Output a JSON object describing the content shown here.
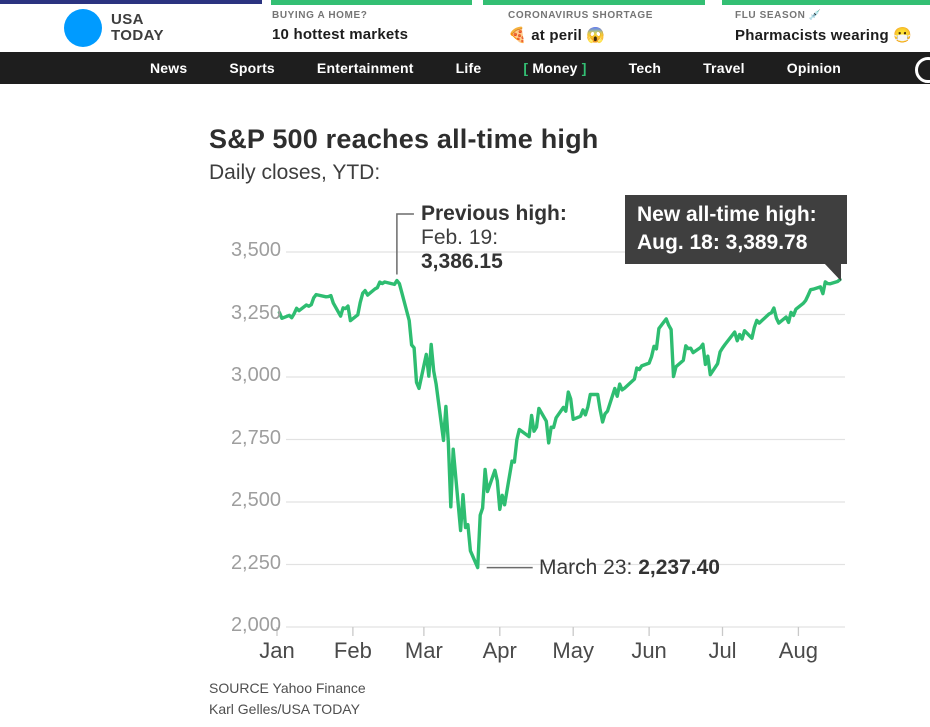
{
  "brand": {
    "logo_line1": "USA",
    "logo_line2": "TODAY",
    "colors": {
      "blue": "#009bff",
      "green": "#33bf73",
      "navy": "#2b3380",
      "nav_bg": "#1e1e1e",
      "tooltip_bg": "#3f3f3f"
    }
  },
  "header": {
    "teasers": [
      {
        "kicker": "BUYING A HOME?",
        "headline": "10 hottest markets"
      },
      {
        "kicker": "CORONAVIRUS SHORTAGE",
        "headline": "🍕 at peril 😱"
      },
      {
        "kicker": "FLU SEASON 💉",
        "headline": "Pharmacists wearing 😷"
      }
    ]
  },
  "nav": {
    "items": [
      "News",
      "Sports",
      "Entertainment",
      "Life",
      "Money",
      "Tech",
      "Travel",
      "Opinion"
    ],
    "money_bracket_left": "[",
    "money_bracket_right": "]"
  },
  "article": {
    "title": "S&P 500 reaches all-time high",
    "subtitle": "Daily closes, YTD:"
  },
  "annotations": {
    "previous_high": {
      "line1": "Previous high:",
      "line2": "Feb. 19:",
      "line3": "3,386.15"
    },
    "new_high": {
      "line1": "New all-time high:",
      "line2": "Aug. 18: 3,389.78"
    },
    "low": {
      "label": "March 23: ",
      "value": "2,237.40"
    }
  },
  "source": {
    "line1": "SOURCE Yahoo Finance",
    "line2": "Karl Gelles/USA TODAY"
  },
  "chart_data": {
    "type": "line",
    "title": "S&P 500 reaches all-time high",
    "subtitle": "Daily closes, YTD:",
    "series_name": "S&P 500 daily close",
    "x_unit": "days since Jan 1, 2020",
    "line_color": "#2ebd71",
    "grid": true,
    "ylim": [
      2000,
      3500
    ],
    "xlim_days": [
      0,
      230
    ],
    "y_ticks": [
      "3,500",
      "3,250",
      "3,000",
      "2,750",
      "2,500",
      "2,250",
      "2,000"
    ],
    "y_tick_values": [
      3500,
      3250,
      3000,
      2750,
      2500,
      2250,
      2000
    ],
    "x_tick_labels": [
      "Jan",
      "Feb",
      "Mar",
      "Apr",
      "May",
      "Jun",
      "Jul",
      "Aug"
    ],
    "x_tick_days": [
      0,
      31,
      60,
      91,
      121,
      152,
      182,
      213
    ],
    "annotation_points": {
      "previous_high": [
        49,
        3386.15
      ],
      "low": [
        82,
        2237.4
      ],
      "new_high": [
        230,
        3389.78
      ]
    },
    "points": [
      [
        1,
        3257.85
      ],
      [
        2,
        3234.85
      ],
      [
        5,
        3246.28
      ],
      [
        6,
        3237.18
      ],
      [
        7,
        3253.05
      ],
      [
        8,
        3274.7
      ],
      [
        9,
        3265.35
      ],
      [
        12,
        3288.13
      ],
      [
        13,
        3283.15
      ],
      [
        14,
        3289.29
      ],
      [
        15,
        3316.81
      ],
      [
        16,
        3329.62
      ],
      [
        20,
        3320.79
      ],
      [
        21,
        3321.75
      ],
      [
        22,
        3325.54
      ],
      [
        23,
        3295.47
      ],
      [
        26,
        3243.63
      ],
      [
        27,
        3276.24
      ],
      [
        28,
        3273.4
      ],
      [
        29,
        3283.66
      ],
      [
        30,
        3225.52
      ],
      [
        33,
        3248.92
      ],
      [
        34,
        3297.59
      ],
      [
        35,
        3334.69
      ],
      [
        36,
        3345.78
      ],
      [
        37,
        3327.71
      ],
      [
        40,
        3352.09
      ],
      [
        41,
        3357.75
      ],
      [
        42,
        3379.45
      ],
      [
        43,
        3373.94
      ],
      [
        44,
        3380.16
      ],
      [
        48,
        3370.29
      ],
      [
        49,
        3386.15
      ],
      [
        50,
        3373.23
      ],
      [
        51,
        3337.75
      ],
      [
        54,
        3225.89
      ],
      [
        55,
        3128.21
      ],
      [
        56,
        3116.39
      ],
      [
        57,
        2978.76
      ],
      [
        58,
        2954.22
      ],
      [
        61,
        3090.23
      ],
      [
        62,
        3003.37
      ],
      [
        63,
        3130.12
      ],
      [
        64,
        3023.94
      ],
      [
        65,
        2972.37
      ],
      [
        68,
        2746.56
      ],
      [
        69,
        2882.23
      ],
      [
        70,
        2741.38
      ],
      [
        71,
        2480.64
      ],
      [
        72,
        2711.02
      ],
      [
        75,
        2386.13
      ],
      [
        76,
        2529.19
      ],
      [
        77,
        2398.1
      ],
      [
        78,
        2409.39
      ],
      [
        79,
        2304.92
      ],
      [
        82,
        2237.4
      ],
      [
        83,
        2447.33
      ],
      [
        84,
        2475.56
      ],
      [
        85,
        2630.07
      ],
      [
        86,
        2541.47
      ],
      [
        89,
        2626.65
      ],
      [
        90,
        2584.59
      ],
      [
        91,
        2470.5
      ],
      [
        92,
        2526.9
      ],
      [
        93,
        2488.65
      ],
      [
        96,
        2663.68
      ],
      [
        97,
        2659.41
      ],
      [
        98,
        2749.98
      ],
      [
        99,
        2789.82
      ],
      [
        103,
        2761.63
      ],
      [
        104,
        2846.06
      ],
      [
        105,
        2783.36
      ],
      [
        106,
        2799.55
      ],
      [
        107,
        2874.56
      ],
      [
        110,
        2823.16
      ],
      [
        111,
        2736.56
      ],
      [
        112,
        2799.31
      ],
      [
        113,
        2797.8
      ],
      [
        114,
        2836.74
      ],
      [
        117,
        2878.48
      ],
      [
        118,
        2863.39
      ],
      [
        119,
        2939.51
      ],
      [
        120,
        2912.43
      ],
      [
        121,
        2830.71
      ],
      [
        124,
        2842.74
      ],
      [
        125,
        2868.44
      ],
      [
        126,
        2848.42
      ],
      [
        127,
        2881.19
      ],
      [
        128,
        2929.8
      ],
      [
        131,
        2930.32
      ],
      [
        132,
        2870.12
      ],
      [
        133,
        2820.0
      ],
      [
        134,
        2852.5
      ],
      [
        135,
        2863.7
      ],
      [
        138,
        2953.91
      ],
      [
        139,
        2922.94
      ],
      [
        140,
        2971.61
      ],
      [
        141,
        2948.51
      ],
      [
        142,
        2955.45
      ],
      [
        146,
        2991.77
      ],
      [
        147,
        3036.13
      ],
      [
        148,
        3029.73
      ],
      [
        149,
        3044.31
      ],
      [
        152,
        3055.73
      ],
      [
        153,
        3080.82
      ],
      [
        154,
        3122.87
      ],
      [
        155,
        3112.35
      ],
      [
        156,
        3193.93
      ],
      [
        159,
        3232.39
      ],
      [
        160,
        3207.18
      ],
      [
        161,
        3190.14
      ],
      [
        162,
        3002.1
      ],
      [
        163,
        3041.31
      ],
      [
        166,
        3066.59
      ],
      [
        167,
        3124.74
      ],
      [
        168,
        3113.49
      ],
      [
        169,
        3115.34
      ],
      [
        170,
        3097.74
      ],
      [
        173,
        3117.86
      ],
      [
        174,
        3131.29
      ],
      [
        175,
        3050.33
      ],
      [
        176,
        3083.76
      ],
      [
        177,
        3009.05
      ],
      [
        180,
        3053.24
      ],
      [
        181,
        3100.29
      ],
      [
        182,
        3115.86
      ],
      [
        183,
        3130.01
      ],
      [
        187,
        3179.72
      ],
      [
        188,
        3145.32
      ],
      [
        189,
        3169.94
      ],
      [
        190,
        3152.05
      ],
      [
        191,
        3185.04
      ],
      [
        194,
        3155.22
      ],
      [
        195,
        3197.52
      ],
      [
        196,
        3226.56
      ],
      [
        197,
        3215.57
      ],
      [
        198,
        3224.73
      ],
      [
        201,
        3251.84
      ],
      [
        202,
        3257.3
      ],
      [
        203,
        3276.02
      ],
      [
        204,
        3235.66
      ],
      [
        205,
        3215.63
      ],
      [
        208,
        3239.41
      ],
      [
        209,
        3218.44
      ],
      [
        210,
        3258.44
      ],
      [
        211,
        3246.22
      ],
      [
        212,
        3271.12
      ],
      [
        215,
        3294.61
      ],
      [
        216,
        3306.51
      ],
      [
        217,
        3327.77
      ],
      [
        218,
        3349.16
      ],
      [
        219,
        3351.28
      ],
      [
        222,
        3360.47
      ],
      [
        223,
        3333.69
      ],
      [
        224,
        3380.35
      ],
      [
        225,
        3373.43
      ],
      [
        226,
        3372.85
      ],
      [
        229,
        3381.99
      ],
      [
        230,
        3389.78
      ]
    ]
  }
}
